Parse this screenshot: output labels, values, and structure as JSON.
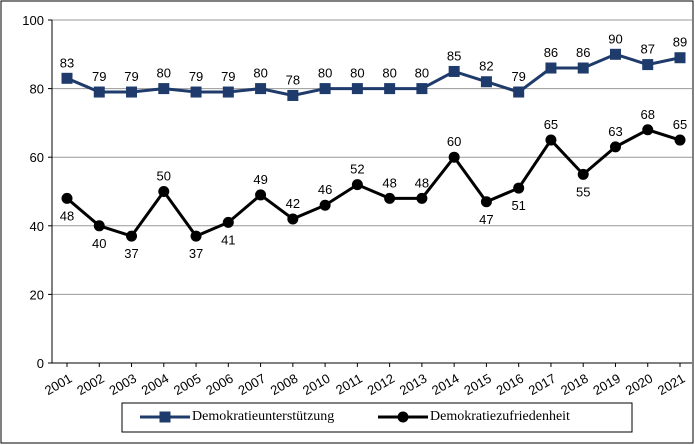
{
  "chart_data": {
    "type": "line",
    "categories": [
      "2001",
      "2002",
      "2003",
      "2004",
      "2005",
      "2006",
      "2007",
      "2008",
      "2010",
      "2011",
      "2012",
      "2013",
      "2014",
      "2015",
      "2016",
      "2017",
      "2018",
      "2019",
      "2020",
      "2021"
    ],
    "series": [
      {
        "name": "Demokratieunterstützung",
        "color": "#1f3b6b",
        "marker": "square",
        "values": [
          83,
          79,
          79,
          80,
          79,
          79,
          80,
          78,
          80,
          80,
          80,
          80,
          85,
          82,
          79,
          86,
          86,
          90,
          87,
          89
        ]
      },
      {
        "name": "Demokratiezufriedenheit",
        "color": "#000000",
        "marker": "circle",
        "values": [
          48,
          40,
          37,
          50,
          37,
          41,
          49,
          42,
          46,
          52,
          48,
          48,
          60,
          47,
          51,
          65,
          55,
          63,
          68,
          65
        ]
      }
    ],
    "ylim": [
      0,
      100
    ],
    "yticks": [
      0,
      20,
      40,
      60,
      80,
      100
    ],
    "grid": true,
    "legend": "bottom"
  }
}
